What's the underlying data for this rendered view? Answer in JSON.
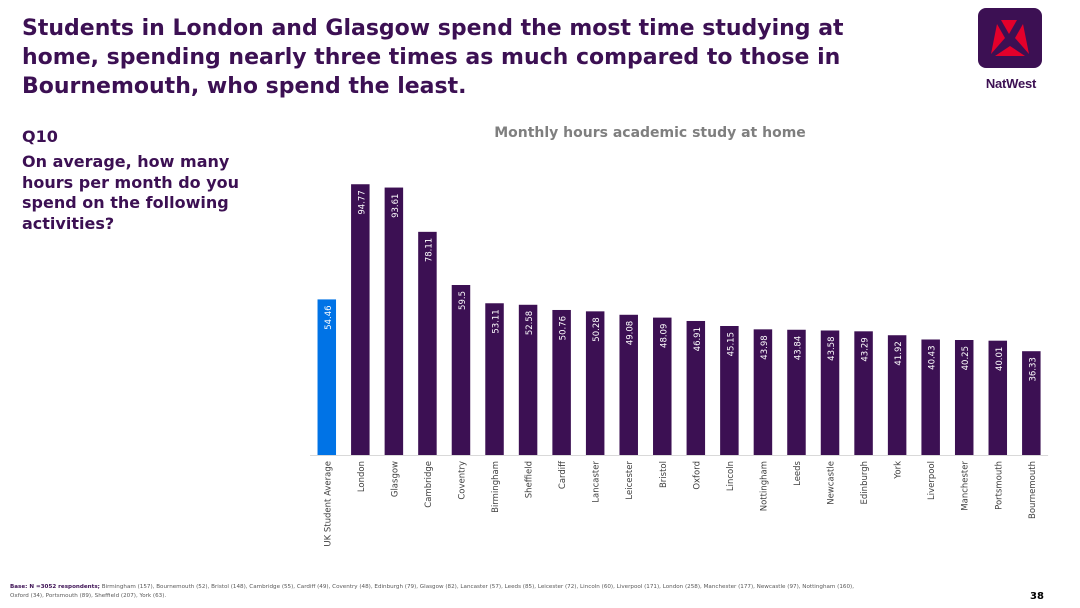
{
  "headline": "Students in London and Glasgow spend the most time studying at home, spending nearly three times as much compared to those in Bournemouth, who spend the least.",
  "brand": {
    "name": "NatWest",
    "icon": "natwest-logo-icon",
    "color": "#3c1053"
  },
  "question": {
    "number": "Q10",
    "text": "On average, how many hours per month do you spend on the following activities?"
  },
  "footer": {
    "base_label": "Base: N =3052 respondents;",
    "base_detail": "Birmingham (157),  Bournemouth (52), Bristol (148), Cambridge (55), Cardiff (49), Coventry (48),  Edinburgh (79), Glasgow (82), Lancaster (57), Leeds (85), Leicester (72), Lincoln (60), Liverpool (171), London (258), Manchester (177), Newcastle (97), Nottingham (160), Oxford (34), Portsmouth (89), Sheffield (207), York (63)."
  },
  "page_number": "38",
  "colors": {
    "highlight": "#0073e6",
    "bar": "#3c1053",
    "title": "#7f7f7f"
  },
  "chart_data": {
    "type": "bar",
    "title": "Monthly hours academic study at home",
    "xlabel": "",
    "ylabel": "",
    "ylim": [
      0,
      100
    ],
    "grid": false,
    "legend": "none",
    "categories": [
      "UK Student Average",
      "London",
      "Glasgow",
      "Cambridge",
      "Coventry",
      "Birmingham",
      "Sheffield",
      "Cardiff",
      "Lancaster",
      "Leicester",
      "Bristol",
      "Oxford",
      "Lincoln",
      "Nottingham",
      "Leeds",
      "Newcastle",
      "Edinburgh",
      "York",
      "Liverpool",
      "Manchester",
      "Portsmouth",
      "Bournemouth"
    ],
    "values": [
      54.46,
      94.77,
      93.61,
      78.11,
      59.5,
      53.11,
      52.58,
      50.76,
      50.28,
      49.08,
      48.09,
      46.91,
      45.15,
      43.98,
      43.84,
      43.58,
      43.29,
      41.92,
      40.43,
      40.25,
      40.01,
      36.33
    ],
    "data_labels": [
      "54.46",
      "94.77",
      "93.61",
      "78.11",
      "59.5",
      "53.11",
      "52.58",
      "50.76",
      "50.28",
      "49.08",
      "48.09",
      "46.91",
      "45.15",
      "43.98",
      "43.84",
      "43.58",
      "43.29",
      "41.92",
      "40.43",
      "40.25",
      "40.01",
      "36.33"
    ],
    "highlight_index": 0
  }
}
